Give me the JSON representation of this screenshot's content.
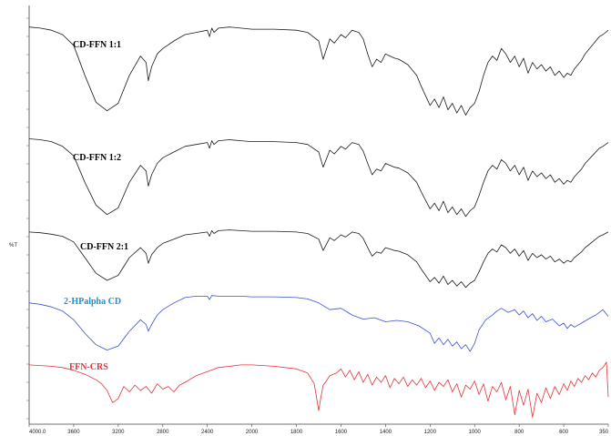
{
  "chart_data": {
    "type": "line",
    "title": "",
    "xlabel": "",
    "ylabel": "%T",
    "xlim": [
      4000,
      350
    ],
    "x_ticks": [
      "4000.0",
      "3600",
      "3200",
      "2800",
      "2400",
      "2000",
      "1800",
      "1600",
      "1400",
      "1200",
      "1000",
      "800",
      "600",
      "350"
    ],
    "grid": false,
    "legend": "none",
    "series": [
      {
        "name": "CD-FFN  1:1",
        "color": "#1a1a1a",
        "label_color": "#000000",
        "x": [
          4000,
          3900,
          3800,
          3700,
          3600,
          3500,
          3400,
          3300,
          3200,
          3100,
          3000,
          2950,
          2930,
          2900,
          2850,
          2800,
          2700,
          2600,
          2500,
          2400,
          2380,
          2360,
          2340,
          2300,
          2200,
          2100,
          2000,
          1900,
          1800,
          1750,
          1700,
          1680,
          1650,
          1630,
          1600,
          1580,
          1550,
          1520,
          1500,
          1480,
          1460,
          1440,
          1420,
          1400,
          1380,
          1360,
          1340,
          1300,
          1260,
          1240,
          1200,
          1180,
          1160,
          1140,
          1120,
          1100,
          1080,
          1060,
          1040,
          1020,
          1000,
          980,
          960,
          940,
          920,
          900,
          880,
          860,
          840,
          820,
          800,
          780,
          760,
          740,
          720,
          700,
          680,
          660,
          640,
          620,
          600,
          580,
          560,
          540,
          520,
          500,
          480,
          460,
          440,
          420,
          400,
          380,
          350
        ],
        "y": [
          85,
          84,
          82,
          78,
          68,
          40,
          15,
          7,
          14,
          40,
          58,
          52,
          35,
          48,
          60,
          65,
          72,
          78,
          80,
          82,
          76,
          84,
          80,
          84,
          85,
          84,
          83,
          83,
          82,
          80,
          72,
          55,
          74,
          70,
          78,
          75,
          82,
          80,
          74,
          60,
          48,
          55,
          52,
          60,
          58,
          56,
          55,
          50,
          40,
          30,
          12,
          18,
          10,
          20,
          8,
          14,
          5,
          12,
          3,
          10,
          14,
          25,
          40,
          52,
          58,
          54,
          65,
          60,
          52,
          58,
          48,
          56,
          42,
          52,
          46,
          50,
          44,
          48,
          40,
          44,
          38,
          42,
          40,
          46,
          50,
          54,
          60,
          64,
          68,
          72,
          76,
          78,
          82
        ]
      },
      {
        "name": "CD-FFN  1:2",
        "color": "#1a1a1a",
        "label_color": "#000000",
        "x": [
          4000,
          3900,
          3800,
          3700,
          3600,
          3500,
          3400,
          3300,
          3200,
          3100,
          3000,
          2950,
          2930,
          2900,
          2850,
          2800,
          2700,
          2600,
          2500,
          2400,
          2380,
          2360,
          2340,
          2300,
          2200,
          2100,
          2000,
          1900,
          1800,
          1750,
          1700,
          1680,
          1650,
          1630,
          1600,
          1580,
          1550,
          1520,
          1500,
          1480,
          1460,
          1440,
          1420,
          1400,
          1380,
          1360,
          1340,
          1300,
          1260,
          1240,
          1200,
          1180,
          1160,
          1140,
          1120,
          1100,
          1080,
          1060,
          1040,
          1020,
          1000,
          980,
          960,
          940,
          920,
          900,
          880,
          860,
          840,
          820,
          800,
          780,
          760,
          740,
          720,
          700,
          680,
          660,
          640,
          620,
          600,
          580,
          560,
          540,
          520,
          500,
          480,
          460,
          440,
          420,
          400,
          380,
          350
        ],
        "y": [
          88,
          87,
          85,
          80,
          70,
          42,
          18,
          8,
          15,
          42,
          60,
          54,
          38,
          50,
          62,
          68,
          74,
          80,
          82,
          84,
          78,
          86,
          82,
          86,
          87,
          86,
          85,
          85,
          84,
          82,
          74,
          58,
          76,
          72,
          80,
          77,
          84,
          82,
          75,
          62,
          50,
          56,
          54,
          62,
          60,
          58,
          57,
          52,
          42,
          32,
          14,
          20,
          12,
          22,
          10,
          16,
          8,
          14,
          6,
          12,
          16,
          28,
          42,
          54,
          60,
          56,
          66,
          62,
          54,
          60,
          50,
          58,
          44,
          54,
          48,
          52,
          46,
          50,
          42,
          46,
          40,
          44,
          42,
          48,
          52,
          56,
          62,
          66,
          70,
          74,
          78,
          80,
          84
        ]
      },
      {
        "name": "CD-FFN 2:1",
        "color": "#1a1a1a",
        "label_color": "#000000",
        "x": [
          4000,
          3900,
          3800,
          3700,
          3600,
          3500,
          3400,
          3300,
          3200,
          3100,
          3000,
          2950,
          2930,
          2900,
          2850,
          2800,
          2700,
          2600,
          2500,
          2400,
          2380,
          2360,
          2340,
          2300,
          2200,
          2100,
          2000,
          1900,
          1800,
          1750,
          1700,
          1680,
          1650,
          1630,
          1600,
          1580,
          1550,
          1520,
          1500,
          1480,
          1460,
          1440,
          1420,
          1400,
          1380,
          1360,
          1340,
          1300,
          1260,
          1240,
          1200,
          1180,
          1160,
          1140,
          1120,
          1100,
          1080,
          1060,
          1040,
          1020,
          1000,
          980,
          960,
          940,
          920,
          900,
          880,
          860,
          840,
          820,
          800,
          780,
          760,
          740,
          720,
          700,
          680,
          660,
          640,
          620,
          600,
          580,
          560,
          540,
          520,
          500,
          480,
          460,
          440,
          420,
          400,
          380,
          350
        ],
        "y": [
          86,
          85,
          83,
          80,
          72,
          50,
          28,
          18,
          25,
          50,
          64,
          56,
          42,
          54,
          64,
          70,
          76,
          82,
          84,
          86,
          80,
          88,
          84,
          88,
          89,
          88,
          87,
          87,
          86,
          84,
          76,
          60,
          78,
          74,
          82,
          79,
          86,
          84,
          77,
          64,
          52,
          58,
          56,
          64,
          62,
          60,
          59,
          54,
          44,
          34,
          16,
          22,
          14,
          24,
          12,
          18,
          10,
          16,
          8,
          14,
          18,
          30,
          44,
          56,
          62,
          58,
          68,
          64,
          56,
          62,
          52,
          60,
          46,
          56,
          50,
          54,
          48,
          52,
          44,
          48,
          42,
          46,
          44,
          50,
          54,
          58,
          64,
          68,
          72,
          76,
          80,
          82,
          86
        ]
      },
      {
        "name": "2-HPalpha CD",
        "color": "#3b4fd8",
        "label_color": "#1e90d6",
        "x": [
          4000,
          3900,
          3800,
          3700,
          3600,
          3500,
          3400,
          3300,
          3200,
          3100,
          3000,
          2950,
          2930,
          2900,
          2850,
          2800,
          2700,
          2600,
          2500,
          2400,
          2380,
          2360,
          2300,
          2200,
          2100,
          2000,
          1900,
          1800,
          1750,
          1700,
          1650,
          1600,
          1550,
          1500,
          1450,
          1400,
          1350,
          1300,
          1250,
          1200,
          1180,
          1160,
          1140,
          1120,
          1100,
          1080,
          1060,
          1040,
          1020,
          1000,
          980,
          950,
          920,
          900,
          880,
          850,
          820,
          800,
          780,
          760,
          740,
          720,
          700,
          680,
          650,
          620,
          600,
          580,
          560,
          540,
          500,
          450,
          420,
          400,
          380,
          350
        ],
        "y": [
          80,
          78,
          74,
          68,
          55,
          35,
          18,
          10,
          16,
          38,
          55,
          48,
          38,
          48,
          62,
          70,
          80,
          88,
          90,
          90,
          85,
          91,
          90,
          90,
          90,
          89,
          89,
          88,
          86,
          80,
          70,
          72,
          62,
          56,
          58,
          52,
          54,
          52,
          46,
          35,
          20,
          28,
          18,
          26,
          16,
          22,
          12,
          18,
          8,
          20,
          40,
          55,
          62,
          68,
          72,
          66,
          70,
          62,
          68,
          58,
          64,
          54,
          60,
          52,
          56,
          46,
          50,
          42,
          48,
          44,
          50,
          58,
          62,
          66,
          70,
          60
        ]
      },
      {
        "name": "FFN-CRS",
        "color": "#e8313a",
        "label_color": "#e8313a",
        "x": [
          4000,
          3900,
          3800,
          3700,
          3600,
          3500,
          3400,
          3350,
          3300,
          3250,
          3200,
          3150,
          3100,
          3050,
          3000,
          2950,
          2900,
          2850,
          2800,
          2750,
          2700,
          2650,
          2600,
          2500,
          2400,
          2300,
          2200,
          2100,
          2000,
          1900,
          1800,
          1750,
          1720,
          1700,
          1690,
          1680,
          1670,
          1650,
          1620,
          1600,
          1580,
          1560,
          1540,
          1520,
          1500,
          1480,
          1460,
          1440,
          1420,
          1400,
          1380,
          1360,
          1340,
          1320,
          1300,
          1280,
          1260,
          1240,
          1220,
          1200,
          1180,
          1160,
          1140,
          1120,
          1100,
          1080,
          1060,
          1040,
          1020,
          1000,
          980,
          960,
          940,
          920,
          900,
          880,
          860,
          840,
          820,
          800,
          780,
          760,
          740,
          720,
          700,
          680,
          660,
          640,
          620,
          600,
          580,
          560,
          540,
          520,
          500,
          480,
          460,
          440,
          420,
          400,
          380,
          360,
          350
        ],
        "y": [
          88,
          87,
          86,
          84,
          80,
          74,
          66,
          60,
          50,
          32,
          38,
          56,
          48,
          58,
          50,
          56,
          46,
          60,
          52,
          56,
          48,
          58,
          62,
          72,
          78,
          84,
          86,
          88,
          88,
          86,
          82,
          76,
          60,
          20,
          40,
          58,
          62,
          72,
          76,
          82,
          70,
          80,
          66,
          78,
          62,
          74,
          58,
          70,
          62,
          72,
          54,
          68,
          60,
          70,
          56,
          66,
          58,
          68,
          54,
          64,
          50,
          62,
          56,
          66,
          48,
          60,
          40,
          58,
          52,
          64,
          44,
          60,
          34,
          56,
          48,
          62,
          36,
          56,
          14,
          50,
          28,
          52,
          10,
          46,
          32,
          54,
          38,
          56,
          44,
          60,
          50,
          64,
          56,
          68,
          62,
          72,
          66,
          76,
          70,
          80,
          84,
          92,
          40
        ]
      }
    ]
  }
}
